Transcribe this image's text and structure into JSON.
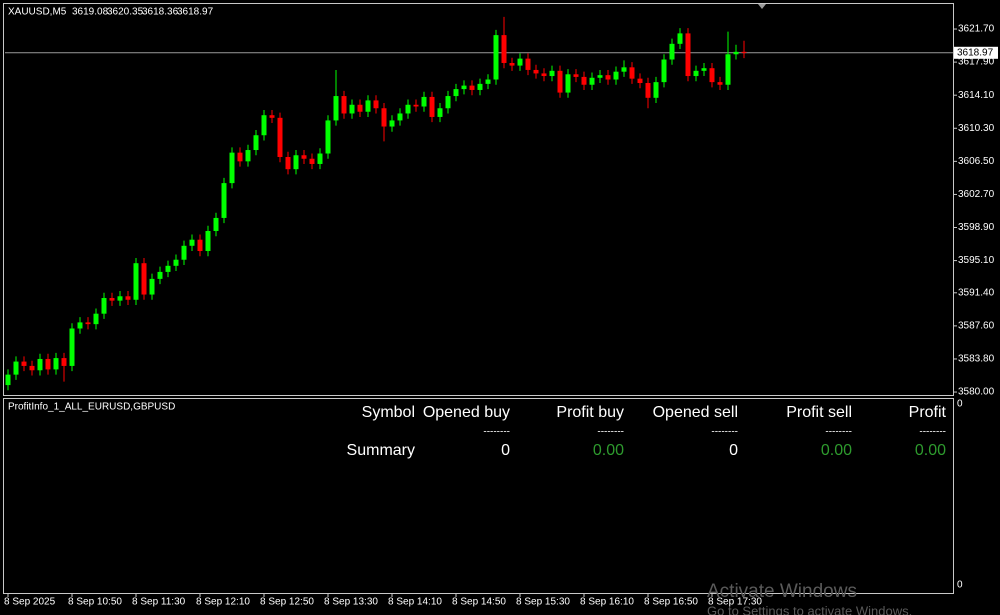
{
  "chart_data": {
    "type": "candlestick",
    "title": "XAUUSD,M5",
    "categories": [
      "8 Sep 2025",
      null,
      null,
      null,
      null,
      null,
      null,
      null,
      "8 Sep 10:50",
      null,
      null,
      null,
      null,
      null,
      null,
      null,
      "8 Sep 11:30",
      null,
      null,
      null,
      null,
      null,
      null,
      null,
      "8 Sep 12:10",
      null,
      null,
      null,
      null,
      null,
      null,
      null,
      "8 Sep 12:50",
      null,
      null,
      null,
      null,
      null,
      null,
      null,
      "8 Sep 13:30",
      null,
      null,
      null,
      null,
      null,
      null,
      null,
      "8 Sep 14:10",
      null,
      null,
      null,
      null,
      null,
      null,
      null,
      "8 Sep 14:50",
      null,
      null,
      null,
      null,
      null,
      null,
      null,
      "8 Sep 15:30",
      null,
      null,
      null,
      null,
      null,
      null,
      null,
      "8 Sep 16:10",
      null,
      null,
      null,
      null,
      null,
      null,
      null,
      "8 Sep 16:50",
      null,
      null,
      null,
      null,
      null,
      null,
      null,
      "8 Sep 17:30",
      null,
      null,
      null,
      null
    ],
    "open": [
      3580.8,
      3582.0,
      3583.5,
      3583.0,
      3582.5,
      3583.8,
      3582.6,
      3583.9,
      3583.0,
      3587.3,
      3588.0,
      3587.8,
      3589.0,
      3590.8,
      3590.5,
      3591.0,
      3590.6,
      3594.8,
      3591.2,
      3593.0,
      3593.8,
      3594.5,
      3595.2,
      3596.8,
      3597.5,
      3596.2,
      3598.5,
      3600.0,
      3604.0,
      3607.5,
      3606.5,
      3607.8,
      3609.5,
      3611.8,
      3611.5,
      3607.0,
      3605.6,
      3607.2,
      3606.8,
      3606.2,
      3607.4,
      3611.2,
      3614.0,
      3612.0,
      3613.0,
      3612.2,
      3613.5,
      3612.6,
      3610.5,
      3611.2,
      3612.0,
      3613.0,
      3612.8,
      3613.9,
      3611.6,
      3612.6,
      3614.0,
      3614.8,
      3615.2,
      3614.7,
      3615.4,
      3615.9,
      3621.0,
      3617.8,
      3617.5,
      3618.3,
      3617.0,
      3616.6,
      3616.3,
      3616.9,
      3614.4,
      3616.5,
      3616.2,
      3615.3,
      3616.1,
      3616.4,
      3615.9,
      3616.8,
      3617.3,
      3616.0,
      3615.5,
      3613.8,
      3615.6,
      3618.2,
      3620.0,
      3621.2,
      3616.3,
      3616.9,
      3617.2,
      3615.6,
      3615.3,
      3618.8,
      3619.08
    ],
    "high": [
      3582.6,
      3584.1,
      3584.1,
      3583.6,
      3584.4,
      3584.4,
      3584.5,
      3584.5,
      3587.9,
      3588.6,
      3588.6,
      3589.6,
      3591.4,
      3591.4,
      3591.6,
      3591.6,
      3595.4,
      3595.4,
      3593.6,
      3594.4,
      3595.1,
      3595.8,
      3597.4,
      3598.1,
      3598.1,
      3599.1,
      3600.6,
      3604.6,
      3608.1,
      3608.1,
      3608.4,
      3610.1,
      3612.4,
      3612.4,
      3612.1,
      3607.6,
      3607.8,
      3607.8,
      3607.4,
      3608.0,
      3611.8,
      3617.0,
      3614.6,
      3613.6,
      3613.6,
      3614.1,
      3614.1,
      3613.2,
      3611.8,
      3612.6,
      3613.6,
      3613.6,
      3614.5,
      3614.5,
      3613.2,
      3614.6,
      3615.4,
      3615.8,
      3615.8,
      3616.0,
      3616.5,
      3621.6,
      3623.1,
      3618.4,
      3618.9,
      3618.9,
      3617.6,
      3617.2,
      3617.5,
      3617.5,
      3617.1,
      3617.1,
      3616.8,
      3616.7,
      3617.0,
      3617.0,
      3617.4,
      3618.1,
      3617.9,
      3616.6,
      3616.1,
      3616.2,
      3618.8,
      3620.6,
      3621.8,
      3621.8,
      3617.5,
      3617.8,
      3617.8,
      3616.2,
      3621.4,
      3619.9,
      3620.35
    ],
    "low": [
      3580.2,
      3581.4,
      3582.4,
      3581.9,
      3581.9,
      3582.0,
      3582.0,
      3581.2,
      3582.4,
      3586.7,
      3587.2,
      3587.2,
      3588.4,
      3589.9,
      3589.9,
      3590.0,
      3590.0,
      3590.6,
      3590.6,
      3592.4,
      3593.2,
      3593.9,
      3594.6,
      3596.2,
      3595.6,
      3595.6,
      3597.9,
      3599.4,
      3603.4,
      3605.9,
      3605.9,
      3607.2,
      3608.9,
      3610.9,
      3606.4,
      3605.0,
      3605.0,
      3606.2,
      3605.6,
      3605.6,
      3606.8,
      3610.6,
      3611.4,
      3611.4,
      3611.6,
      3611.6,
      3612.0,
      3608.8,
      3609.9,
      3610.6,
      3611.4,
      3612.2,
      3612.2,
      3611.0,
      3611.0,
      3612.0,
      3613.4,
      3614.2,
      3614.1,
      3614.1,
      3614.8,
      3615.3,
      3617.2,
      3616.9,
      3616.9,
      3616.4,
      3616.0,
      3615.7,
      3615.7,
      3613.8,
      3613.8,
      3615.6,
      3614.7,
      3614.7,
      3615.5,
      3615.3,
      3615.3,
      3616.2,
      3615.4,
      3614.9,
      3612.6,
      3613.2,
      3615.0,
      3617.6,
      3619.4,
      3615.7,
      3615.7,
      3616.3,
      3615.0,
      3614.7,
      3614.7,
      3618.2,
      3618.36
    ],
    "close": [
      3582.0,
      3583.5,
      3583.0,
      3582.5,
      3583.8,
      3582.6,
      3583.9,
      3583.0,
      3587.3,
      3588.0,
      3587.8,
      3589.0,
      3590.8,
      3590.5,
      3591.0,
      3590.6,
      3594.8,
      3591.2,
      3593.0,
      3593.8,
      3594.5,
      3595.2,
      3596.8,
      3597.5,
      3596.2,
      3598.5,
      3600.0,
      3604.0,
      3607.5,
      3606.5,
      3607.8,
      3609.5,
      3611.8,
      3611.5,
      3607.0,
      3605.6,
      3607.2,
      3606.8,
      3606.2,
      3607.4,
      3611.2,
      3614.0,
      3612.0,
      3613.0,
      3612.2,
      3613.5,
      3612.6,
      3610.5,
      3611.2,
      3612.0,
      3613.0,
      3612.8,
      3613.9,
      3611.6,
      3612.6,
      3614.0,
      3614.8,
      3615.2,
      3614.7,
      3615.4,
      3615.9,
      3621.0,
      3617.8,
      3617.5,
      3618.3,
      3617.0,
      3616.6,
      3616.3,
      3616.9,
      3614.4,
      3616.5,
      3616.2,
      3615.3,
      3616.1,
      3616.4,
      3615.9,
      3616.8,
      3617.3,
      3616.0,
      3615.5,
      3613.8,
      3615.6,
      3618.2,
      3620.0,
      3621.2,
      3616.3,
      3616.9,
      3617.2,
      3615.6,
      3615.3,
      3618.8,
      3619.08,
      3618.97
    ],
    "up_color": "#00ff00",
    "down_color": "#ff0000",
    "price_line_color": "#9a9a9a",
    "ylim": [
      3579.66,
      3624.46
    ],
    "yticks": [
      {
        "value": 3621.7,
        "label": "3621.70"
      },
      {
        "value": 3617.9,
        "label": "3617.90"
      },
      {
        "value": 3614.1,
        "label": "3614.10"
      },
      {
        "value": 3610.3,
        "label": "3610.30"
      },
      {
        "value": 3606.5,
        "label": "3606.50"
      },
      {
        "value": 3602.7,
        "label": "3602.70"
      },
      {
        "value": 3598.9,
        "label": "3598.90"
      },
      {
        "value": 3595.1,
        "label": "3595.10"
      },
      {
        "value": 3591.4,
        "label": "3591.40"
      },
      {
        "value": 3587.6,
        "label": "3587.60"
      },
      {
        "value": 3583.8,
        "label": "3583.80"
      },
      {
        "value": 3580,
        "label": "3580.00"
      }
    ],
    "grid": false
  },
  "indicator_panel": {
    "name": "ProfitInfo_1_ALL_EURUSD,GBPUSD",
    "columns": [
      "Symbol",
      "Opened buy",
      "Profit buy",
      "Opened sell",
      "Profit sell",
      "Profit"
    ],
    "separators": [
      "--------",
      "--------",
      "--------",
      "--------",
      "--------"
    ],
    "summary": [
      "Summary",
      0,
      "0.00",
      0,
      "0.00",
      "0.00"
    ],
    "scale_labels": [
      0,
      0
    ]
  },
  "watermark": {
    "title": "Activate Windows",
    "subtitle": "Go to Settings to activate Windows."
  }
}
